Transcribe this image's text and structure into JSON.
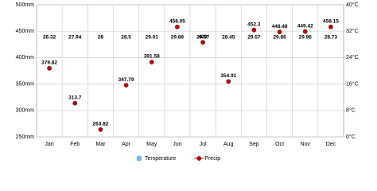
{
  "chart_data": {
    "type": "climate",
    "categories": [
      "Jan",
      "Feb",
      "Mar",
      "Apr",
      "May",
      "Jun",
      "Jul",
      "Aug",
      "Sep",
      "Oct",
      "Nov",
      "Dec"
    ],
    "series": [
      {
        "name": "Temperature",
        "color": "#7fb8e6",
        "axis": "y2",
        "values": [
          26.32,
          27.94,
          28,
          28.5,
          29.01,
          29.88,
          29.57,
          28.45,
          29.57,
          29.86,
          29.96,
          28.73
        ]
      },
      {
        "name": "Precip",
        "color": "#cc0000",
        "values": [
          379.82,
          313.7,
          263.82,
          347.79,
          391.58,
          458.05,
          429,
          354.91,
          452.3,
          448.48,
          449.42,
          458.15
        ]
      }
    ],
    "ylim": [
      250,
      500
    ],
    "yticks": [
      {
        "value": 250,
        "label": "250mm"
      },
      {
        "value": 300,
        "label": "300mm"
      },
      {
        "value": 350,
        "label": "350mm"
      },
      {
        "value": 400,
        "label": "400mm"
      },
      {
        "value": 450,
        "label": "450mm"
      },
      {
        "value": 500,
        "label": "500mm"
      }
    ],
    "y2lim": [
      0,
      40
    ],
    "y2ticks": [
      {
        "value": 0,
        "label": "0°C"
      },
      {
        "value": 8,
        "label": "8°C"
      },
      {
        "value": 16,
        "label": "16°C"
      },
      {
        "value": 24,
        "label": "24°C"
      },
      {
        "value": 32,
        "label": "32°C"
      },
      {
        "value": 40,
        "label": "40°C"
      }
    ],
    "grid": true
  }
}
